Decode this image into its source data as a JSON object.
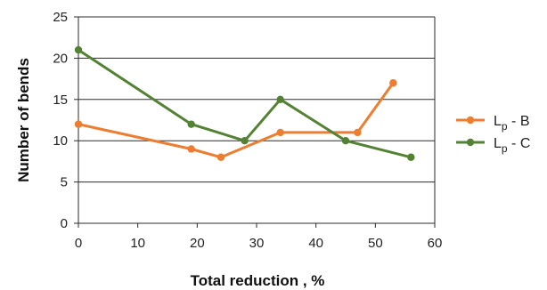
{
  "chart_data": {
    "type": "line",
    "title": "",
    "xlabel": "Total reduction , %",
    "ylabel": "Number of bends",
    "xlim": [
      0,
      60
    ],
    "ylim": [
      0,
      25
    ],
    "xticks": [
      0,
      10,
      20,
      30,
      40,
      50,
      60
    ],
    "yticks": [
      0,
      5,
      10,
      15,
      20,
      25
    ],
    "grid": "horizontal",
    "legend_position": "right",
    "series": [
      {
        "name_main": "L",
        "name_sub": "p",
        "name_suffix": " - B",
        "color": "#ED7D31",
        "points": [
          {
            "x": 0,
            "y": 12
          },
          {
            "x": 19,
            "y": 9
          },
          {
            "x": 24,
            "y": 8
          },
          {
            "x": 34,
            "y": 11
          },
          {
            "x": 47,
            "y": 11
          },
          {
            "x": 53,
            "y": 17
          }
        ]
      },
      {
        "name_main": "L",
        "name_sub": "p",
        "name_suffix": " - C",
        "color": "#548235",
        "points": [
          {
            "x": 0,
            "y": 21
          },
          {
            "x": 19,
            "y": 12
          },
          {
            "x": 28,
            "y": 10
          },
          {
            "x": 34,
            "y": 15
          },
          {
            "x": 45,
            "y": 10
          },
          {
            "x": 56,
            "y": 8
          }
        ]
      }
    ]
  }
}
